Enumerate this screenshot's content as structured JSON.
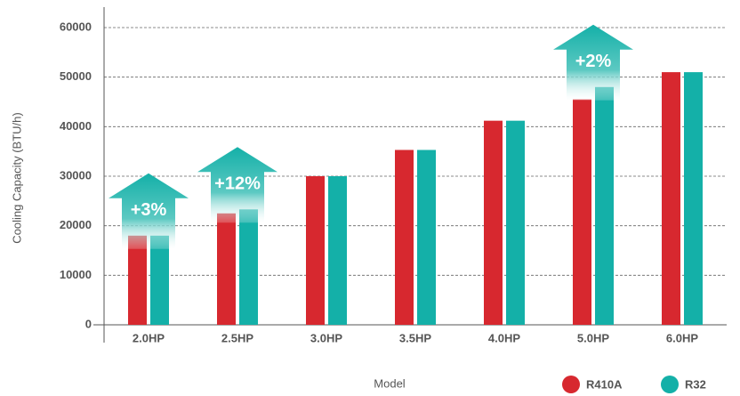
{
  "chart_data": {
    "type": "bar",
    "x_label": "Model",
    "y_label": "Cooling Capacity (BTU/h)",
    "categories": [
      "2.0HP",
      "2.5HP",
      "3.0HP",
      "3.5HP",
      "4.0HP",
      "5.0HP",
      "6.0HP"
    ],
    "series": [
      {
        "name": "R410A",
        "color": "#d7282f",
        "values": [
          18000,
          22500,
          30000,
          35300,
          41200,
          45500,
          51000
        ]
      },
      {
        "name": "R32",
        "color": "#14b0a8",
        "values": [
          18000,
          23300,
          30000,
          35300,
          41200,
          48000,
          51000
        ]
      }
    ],
    "ylim": [
      0,
      60000
    ],
    "yticks": [
      0,
      10000,
      20000,
      30000,
      40000,
      50000,
      60000
    ],
    "grid": true,
    "annotations": [
      "+3%",
      "+12%",
      "+2%"
    ]
  }
}
